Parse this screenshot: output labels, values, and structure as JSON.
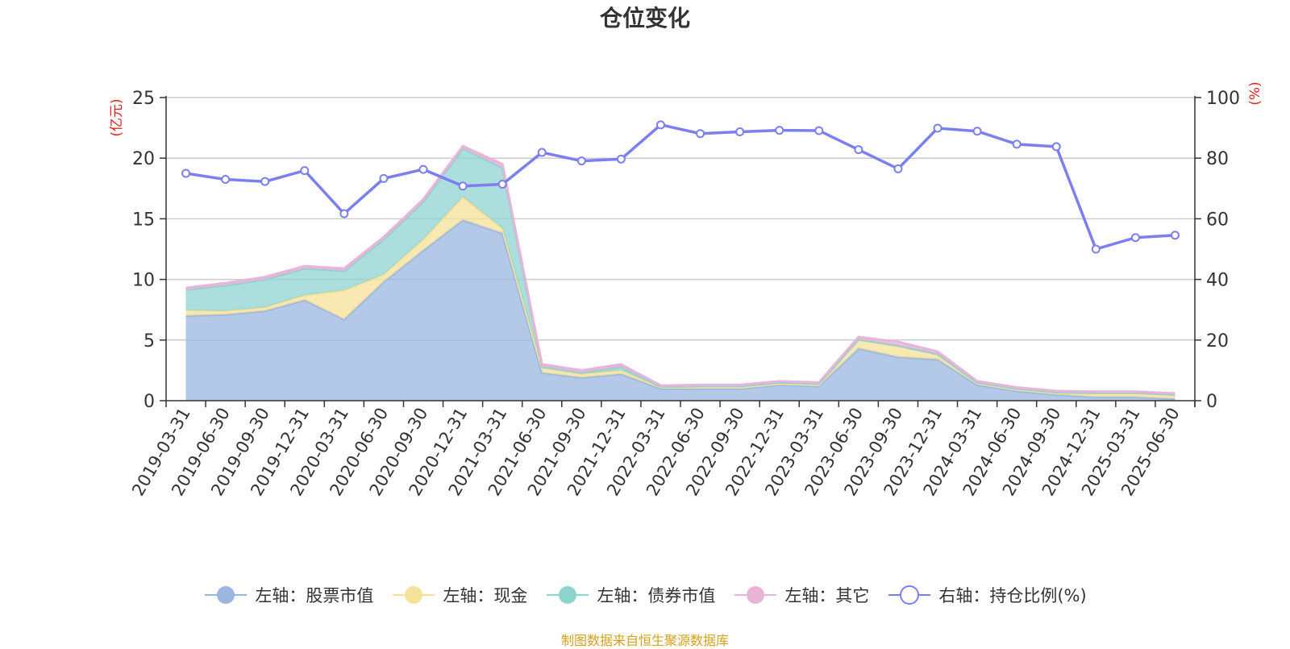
{
  "chart_data": {
    "type": "area",
    "title": "仓位变化",
    "ylabel_left": "(亿元)",
    "ylabel_right": "(%)",
    "ylim_left": [
      0,
      25
    ],
    "yticks_left": [
      "0",
      "5",
      "10",
      "15",
      "20",
      "25"
    ],
    "ylim_right": [
      0,
      100
    ],
    "yticks_right": [
      "0",
      "20",
      "40",
      "60",
      "80",
      "100"
    ],
    "grid": true,
    "legend_position": "bottom",
    "categories": [
      "2019-03-31",
      "2019-06-30",
      "2019-09-30",
      "2019-12-31",
      "2020-03-31",
      "2020-06-30",
      "2020-09-30",
      "2020-12-31",
      "2021-03-31",
      "2021-06-30",
      "2021-09-30",
      "2021-12-31",
      "2022-03-31",
      "2022-06-30",
      "2022-09-30",
      "2022-12-31",
      "2023-03-31",
      "2023-06-30",
      "2023-09-30",
      "2023-12-31",
      "2024-03-31",
      "2024-06-30",
      "2024-09-30",
      "2024-12-31",
      "2025-03-31",
      "2025-06-30"
    ],
    "series": [
      {
        "name": "左轴：股票市值",
        "axis": "left",
        "kind": "stacked-area",
        "color": "#9bb6e0",
        "values": [
          7.0,
          7.1,
          7.4,
          8.3,
          6.7,
          9.8,
          12.4,
          14.9,
          13.8,
          2.3,
          1.9,
          2.2,
          1.0,
          1.0,
          1.0,
          1.3,
          1.2,
          4.3,
          3.6,
          3.4,
          1.3,
          0.8,
          0.5,
          0.3,
          0.3,
          0.15
        ]
      },
      {
        "name": "左轴：现金",
        "axis": "left",
        "kind": "stacked-area",
        "color": "#f5e29a",
        "values": [
          0.45,
          0.3,
          0.3,
          0.4,
          2.4,
          0.6,
          0.9,
          1.9,
          0.4,
          0.4,
          0.3,
          0.3,
          0.1,
          0.1,
          0.1,
          0.1,
          0.1,
          0.7,
          0.9,
          0.4,
          0.15,
          0.15,
          0.15,
          0.3,
          0.3,
          0.3
        ]
      },
      {
        "name": "左轴：债券市值",
        "axis": "left",
        "kind": "stacked-area",
        "color": "#8fd3d0",
        "values": [
          1.7,
          2.1,
          2.3,
          2.2,
          1.6,
          2.9,
          3.1,
          4.0,
          5.0,
          0.1,
          0.1,
          0.3,
          0.05,
          0.1,
          0.1,
          0.1,
          0.1,
          0.05,
          0.05,
          0.05,
          0.05,
          0.05,
          0.05,
          0.05,
          0.05,
          0.05
        ]
      },
      {
        "name": "左轴：其它",
        "axis": "left",
        "kind": "stacked-area",
        "color": "#e8b4d8",
        "values": [
          0.15,
          0.2,
          0.2,
          0.2,
          0.2,
          0.2,
          0.2,
          0.2,
          0.3,
          0.2,
          0.2,
          0.2,
          0.1,
          0.1,
          0.1,
          0.1,
          0.1,
          0.2,
          0.3,
          0.2,
          0.1,
          0.1,
          0.1,
          0.1,
          0.1,
          0.1
        ]
      },
      {
        "name": "右轴：持仓比例(%)",
        "axis": "right",
        "kind": "line",
        "color": "#7b7ff0",
        "values": [
          75.0,
          73.0,
          72.3,
          75.9,
          61.7,
          73.3,
          76.3,
          70.8,
          71.4,
          81.9,
          79.1,
          79.7,
          91.0,
          88.1,
          88.7,
          89.2,
          89.1,
          82.8,
          76.5,
          89.9,
          88.9,
          84.6,
          83.8,
          50.0,
          53.8,
          54.6
        ]
      }
    ]
  },
  "footer": {
    "source": "制图数据来自恒生聚源数据库"
  }
}
